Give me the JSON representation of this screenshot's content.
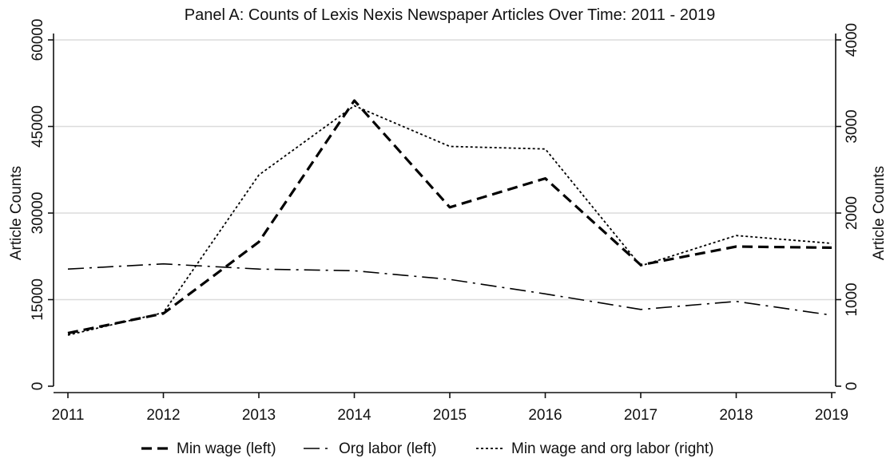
{
  "chart_data": {
    "type": "line",
    "title": "Panel A: Counts of Lexis Nexis Newspaper Articles Over Time: 2011 - 2019",
    "x": [
      2011,
      2012,
      2013,
      2014,
      2015,
      2016,
      2017,
      2018,
      2019
    ],
    "x_ticks": [
      "2011",
      "2012",
      "2013",
      "2014",
      "2015",
      "2016",
      "2017",
      "2018",
      "2019"
    ],
    "ylabel_left": "Article Counts",
    "ylabel_right": "Article Counts",
    "ylim_left": [
      0,
      60000
    ],
    "ylim_right": [
      0,
      4000
    ],
    "yticks_left": [
      "0",
      "15000",
      "30000",
      "45000",
      "60000"
    ],
    "yticks_right": [
      "0",
      "1000",
      "2000",
      "3000",
      "4000"
    ],
    "grid": true,
    "legend_position": "bottom",
    "series": [
      {
        "name": "Min wage (left)",
        "axis": "left",
        "style": "dash",
        "values": [
          9200,
          12600,
          25000,
          49500,
          31000,
          36000,
          21000,
          24200,
          24000
        ]
      },
      {
        "name": "Org labor (left)",
        "axis": "left",
        "style": "dashdot",
        "values": [
          20300,
          21200,
          20300,
          20000,
          18500,
          16000,
          13300,
          14700,
          12300
        ]
      },
      {
        "name": "Min wage and org labor (right)",
        "axis": "right",
        "style": "dot",
        "values": [
          590,
          850,
          2440,
          3240,
          2770,
          2740,
          1390,
          1740,
          1650
        ]
      }
    ]
  }
}
